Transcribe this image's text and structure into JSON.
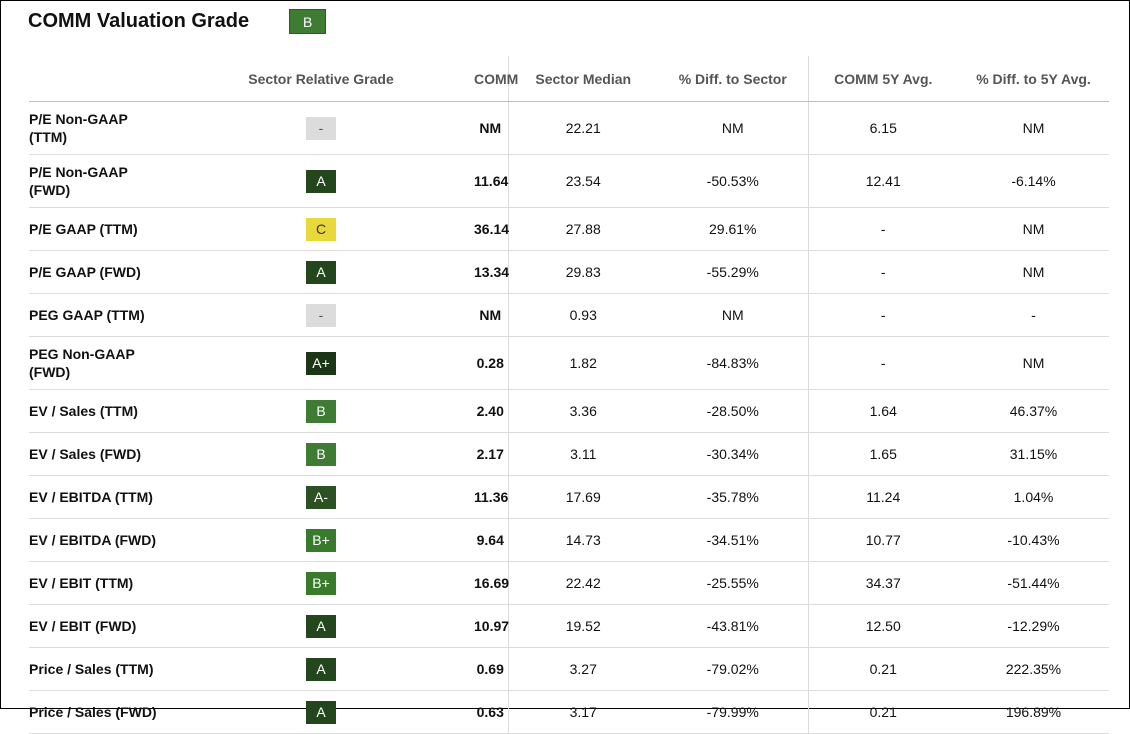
{
  "header": {
    "title": "COMM Valuation Grade",
    "overall_grade": "B"
  },
  "columns": [
    "",
    "Sector Relative Grade",
    "COMM",
    "Sector Median",
    "% Diff. to Sector",
    "COMM 5Y Avg.",
    "% Diff. to 5Y Avg."
  ],
  "rows": [
    {
      "metric": "P/E Non-GAAP (TTM)",
      "grade": "-",
      "comm": "NM",
      "sector_median": "22.21",
      "diff_sector": "NM",
      "avg_5y": "6.15",
      "diff_5y": "NM"
    },
    {
      "metric": "P/E Non-GAAP (FWD)",
      "grade": "A",
      "comm": "11.64",
      "sector_median": "23.54",
      "diff_sector": "-50.53%",
      "avg_5y": "12.41",
      "diff_5y": "-6.14%"
    },
    {
      "metric": "P/E GAAP (TTM)",
      "grade": "C",
      "comm": "36.14",
      "sector_median": "27.88",
      "diff_sector": "29.61%",
      "avg_5y": "-",
      "diff_5y": "NM"
    },
    {
      "metric": "P/E GAAP (FWD)",
      "grade": "A",
      "comm": "13.34",
      "sector_median": "29.83",
      "diff_sector": "-55.29%",
      "avg_5y": "-",
      "diff_5y": "NM"
    },
    {
      "metric": "PEG GAAP (TTM)",
      "grade": "-",
      "comm": "NM",
      "sector_median": "0.93",
      "diff_sector": "NM",
      "avg_5y": "-",
      "diff_5y": "-"
    },
    {
      "metric": "PEG Non-GAAP (FWD)",
      "grade": "A+",
      "comm": "0.28",
      "sector_median": "1.82",
      "diff_sector": "-84.83%",
      "avg_5y": "-",
      "diff_5y": "NM"
    },
    {
      "metric": "EV / Sales (TTM)",
      "grade": "B",
      "comm": "2.40",
      "sector_median": "3.36",
      "diff_sector": "-28.50%",
      "avg_5y": "1.64",
      "diff_5y": "46.37%"
    },
    {
      "metric": "EV / Sales (FWD)",
      "grade": "B",
      "comm": "2.17",
      "sector_median": "3.11",
      "diff_sector": "-30.34%",
      "avg_5y": "1.65",
      "diff_5y": "31.15%"
    },
    {
      "metric": "EV / EBITDA (TTM)",
      "grade": "A-",
      "comm": "11.36",
      "sector_median": "17.69",
      "diff_sector": "-35.78%",
      "avg_5y": "11.24",
      "diff_5y": "1.04%"
    },
    {
      "metric": "EV / EBITDA (FWD)",
      "grade": "B+",
      "comm": "9.64",
      "sector_median": "14.73",
      "diff_sector": "-34.51%",
      "avg_5y": "10.77",
      "diff_5y": "-10.43%"
    },
    {
      "metric": "EV / EBIT (TTM)",
      "grade": "B+",
      "comm": "16.69",
      "sector_median": "22.42",
      "diff_sector": "-25.55%",
      "avg_5y": "34.37",
      "diff_5y": "-51.44%"
    },
    {
      "metric": "EV / EBIT (FWD)",
      "grade": "A",
      "comm": "10.97",
      "sector_median": "19.52",
      "diff_sector": "-43.81%",
      "avg_5y": "12.50",
      "diff_5y": "-12.29%"
    },
    {
      "metric": "Price / Sales (TTM)",
      "grade": "A",
      "comm": "0.69",
      "sector_median": "3.27",
      "diff_sector": "-79.02%",
      "avg_5y": "0.21",
      "diff_5y": "222.35%"
    },
    {
      "metric": "Price / Sales (FWD)",
      "grade": "A",
      "comm": "0.63",
      "sector_median": "3.17",
      "diff_sector": "-79.99%",
      "avg_5y": "0.21",
      "diff_5y": "196.89%"
    }
  ]
}
